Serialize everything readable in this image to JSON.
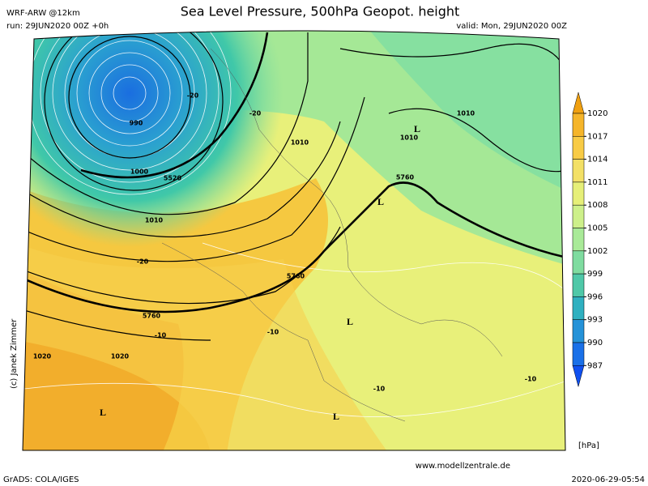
{
  "header": {
    "model": "WRF-ARW @12km",
    "title": "Sea Level Pressure, 500hPa Geopot. height",
    "run": "run: 29JUN2020 00Z +0h",
    "valid": "valid: Mon, 29JUN2020 00Z"
  },
  "colorbar": {
    "ticks": [
      1020,
      1017,
      1014,
      1011,
      1008,
      1005,
      1002,
      999,
      996,
      993,
      990,
      987
    ],
    "colors": [
      "#f0a010",
      "#f5b52a",
      "#f8cb45",
      "#f3e066",
      "#e6ef78",
      "#cdf08a",
      "#a9ea98",
      "#7fdca0",
      "#4fc8a8",
      "#2fb0c0",
      "#2592d8",
      "#1a70e8",
      "#1050f0"
    ],
    "unit": "[hPa]"
  },
  "map_labels": [
    "1000",
    "5520",
    "990",
    "1010",
    "1010",
    "1010",
    "1010",
    "5760",
    "L",
    "5760",
    "5760",
    "1020",
    "1020",
    "L",
    "L",
    "L",
    "L",
    "-20",
    "-20",
    "-20",
    "-10",
    "-10",
    "-10",
    "-10"
  ],
  "credit": "(c) Janek Zimmer",
  "footer": {
    "left": "GrADS: COLA/IGES",
    "url": "www.modellzentrale.de",
    "timestamp": "2020-06-29-05:54"
  }
}
